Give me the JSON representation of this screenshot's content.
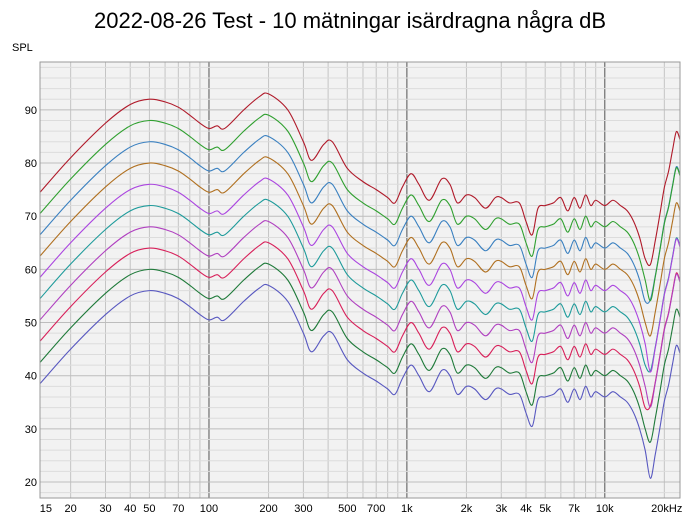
{
  "chart_data": {
    "type": "line",
    "title": "2022-08-26 Test - 10 mätningar isärdragna några dB",
    "ylabel": "SPL",
    "xscale": "log",
    "xlim": [
      14,
      24000
    ],
    "ylim": [
      17,
      99
    ],
    "grid": true,
    "x_tick_labels": [
      {
        "x": 15,
        "label": "15"
      },
      {
        "x": 20,
        "label": "20"
      },
      {
        "x": 30,
        "label": "30"
      },
      {
        "x": 40,
        "label": "40"
      },
      {
        "x": 50,
        "label": "50"
      },
      {
        "x": 70,
        "label": "70"
      },
      {
        "x": 100,
        "label": "100"
      },
      {
        "x": 200,
        "label": "200"
      },
      {
        "x": 300,
        "label": "300"
      },
      {
        "x": 500,
        "label": "500"
      },
      {
        "x": 700,
        "label": "700"
      },
      {
        "x": 1000,
        "label": "1k"
      },
      {
        "x": 2000,
        "label": "2k"
      },
      {
        "x": 3000,
        "label": "3k"
      },
      {
        "x": 4000,
        "label": "4k"
      },
      {
        "x": 5000,
        "label": "5k"
      },
      {
        "x": 7000,
        "label": "7k"
      },
      {
        "x": 10000,
        "label": "10k"
      },
      {
        "x": 20000,
        "label": "20kHz"
      }
    ],
    "y_ticks": [
      20,
      30,
      40,
      50,
      60,
      70,
      80,
      90
    ],
    "base_curve": {
      "x": [
        14,
        20,
        30,
        40,
        50,
        60,
        70,
        80,
        90,
        100,
        110,
        120,
        150,
        180,
        200,
        250,
        300,
        330,
        380,
        420,
        500,
        600,
        700,
        800,
        870,
        950,
        1050,
        1150,
        1300,
        1500,
        1650,
        1800,
        2000,
        2200,
        2500,
        2800,
        3000,
        3300,
        3700,
        4000,
        4300,
        4600,
        5000,
        5500,
        6000,
        6500,
        7000,
        7500,
        8000,
        8500,
        9000,
        10000,
        11000,
        12000,
        13000,
        14000,
        15000,
        16000,
        17000,
        18000,
        19000,
        20000,
        21000,
        22000,
        23000,
        24000
      ],
      "y": [
        38.5,
        45,
        51.5,
        55,
        56,
        55.5,
        54.5,
        53,
        51.5,
        50.5,
        51,
        50.5,
        54,
        56.5,
        57,
        54,
        48,
        44.5,
        47.5,
        48,
        43,
        40.5,
        39,
        37.5,
        36.5,
        39.5,
        42,
        40,
        37,
        41,
        40,
        36.5,
        38,
        37.5,
        35.5,
        37.5,
        37.5,
        36.5,
        36.5,
        33,
        30.5,
        35.5,
        36,
        36.5,
        37.5,
        35,
        37.5,
        35.5,
        38,
        36,
        37,
        36,
        37,
        36,
        35,
        33,
        30,
        26,
        23.5,
        28,
        33,
        38,
        41,
        45,
        48.5,
        47
      ]
    },
    "series": [
      {
        "offset": 0,
        "color": "#5858c0"
      },
      {
        "offset": 4,
        "color": "#1f7a3a"
      },
      {
        "offset": 8,
        "color": "#d8205a"
      },
      {
        "offset": 12,
        "color": "#b040c0"
      },
      {
        "offset": 16,
        "color": "#1e9b9b"
      },
      {
        "offset": 20,
        "color": "#ab45e0"
      },
      {
        "offset": 24,
        "color": "#b07020"
      },
      {
        "offset": 28,
        "color": "#3a80c0"
      },
      {
        "offset": 32,
        "color": "#30a030"
      },
      {
        "offset": 36,
        "color": "#b01a2a"
      }
    ]
  }
}
